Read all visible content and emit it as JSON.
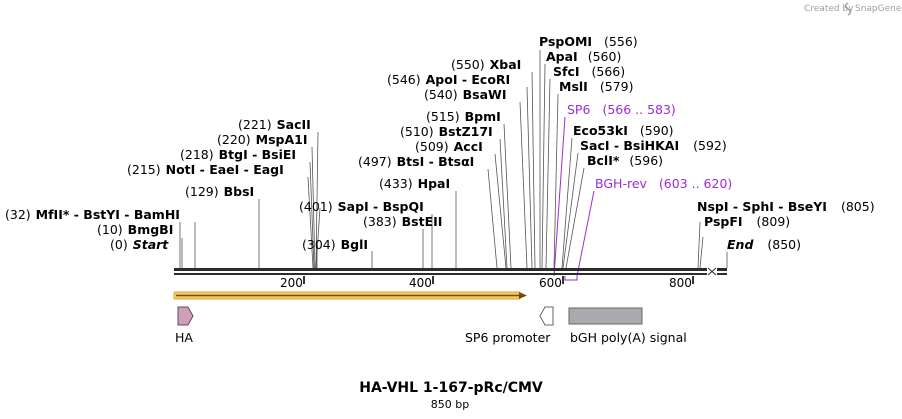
{
  "credit": {
    "text": "Created by",
    "brand": "SnapGene"
  },
  "title": "HA-VHL 1-167-pRc/CMV",
  "length_label": "850 bp",
  "ruler": {
    "ticks": [
      "200",
      "400",
      "600",
      "800"
    ]
  },
  "sites": [
    {
      "name": "MfII",
      "star": true,
      "pos": "(32)",
      "extra": [
        " - BstYI",
        " - BamHI"
      ]
    },
    {
      "name": "BmgBI",
      "pos": "(10)"
    },
    {
      "name": "Start",
      "pos": "(0)",
      "italic": true
    },
    {
      "name": "BbsI",
      "pos": "(129)"
    },
    {
      "name": "NotI",
      "pos": "(215)",
      "extra": [
        " - EaeI",
        " - EagI"
      ]
    },
    {
      "name": "BtgI",
      "pos": "(218)",
      "extra": [
        " - BsiEI"
      ]
    },
    {
      "name": "MspA1I",
      "pos": "(220)"
    },
    {
      "name": "SacII",
      "pos": "(221)"
    },
    {
      "name": "BglI",
      "pos": "(304)"
    },
    {
      "name": "BstEII",
      "pos": "(383)"
    },
    {
      "name": "SapI",
      "pos": "(401)",
      "extra": [
        " - BspQI"
      ]
    },
    {
      "name": "HpaI",
      "pos": "(433)"
    },
    {
      "name": "BtsI",
      "pos": "(497)",
      "extra": [
        " - BtsαI"
      ]
    },
    {
      "name": "AccI",
      "pos": "(509)"
    },
    {
      "name": "BstZ17I",
      "pos": "(510)"
    },
    {
      "name": "BpmI",
      "pos": "(515)"
    },
    {
      "name": "BsaWI",
      "pos": "(540)"
    },
    {
      "name": "ApoI",
      "pos": "(546)",
      "extra": [
        " - EcoRI"
      ]
    },
    {
      "name": "XbaI",
      "pos": "(550)"
    },
    {
      "name": "PspOMI",
      "pos": "(556)"
    },
    {
      "name": "ApaI",
      "pos": "(560)"
    },
    {
      "name": "SfcI",
      "pos": "(566)"
    },
    {
      "name": "MslI",
      "pos": "(579)"
    },
    {
      "name": "Eco53kI",
      "pos": "(590)"
    },
    {
      "name": "SacI",
      "pos": "(592)",
      "extra": [
        " - BsiHKAI"
      ]
    },
    {
      "name": "BclI",
      "star": true,
      "pos": "(596)"
    },
    {
      "name": "NspI",
      "pos": "(805)",
      "extra": [
        " - SphI",
        " - BseYI"
      ]
    },
    {
      "name": "PspFI",
      "pos": "(809)"
    },
    {
      "name": "End",
      "pos": "(850)",
      "italic": true
    }
  ],
  "primers": [
    {
      "name": "SP6",
      "range": "(566 .. 583)"
    },
    {
      "name": "BGH-rev",
      "range": "(603 .. 620)"
    }
  ],
  "features": [
    {
      "name": "HA"
    },
    {
      "name": "SP6 promoter"
    },
    {
      "name": "bGH poly(A) signal"
    }
  ],
  "colors": {
    "backbone": "#2b2b2b",
    "orf_fill": "#f5c86b",
    "orf_stroke": "#e2a43a",
    "ha": "#d39cb8",
    "bgh": "#a9abb0",
    "primer": "#9c2bd6",
    "line": "#555555"
  }
}
